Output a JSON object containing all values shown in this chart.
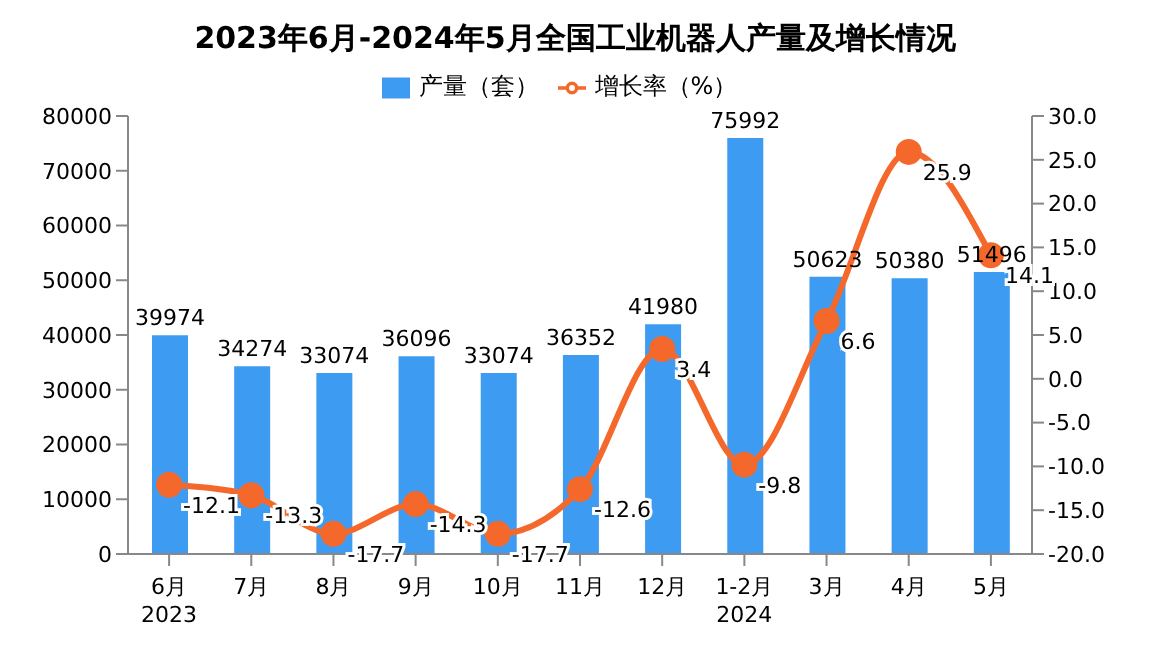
{
  "chart_data": {
    "type": "bar",
    "title": "2023年6月-2024年5月全国工业机器人产量及增长情况",
    "categories": [
      "6月\n2023",
      "7月",
      "8月",
      "9月",
      "10月",
      "11月",
      "12月",
      "1-2月\n2024",
      "3月",
      "4月",
      "5月"
    ],
    "series": [
      {
        "name": "产量（套）",
        "color": "#3d9cf2",
        "values": [
          39974,
          34274,
          33074,
          36096,
          33074,
          36352,
          41980,
          75992,
          50623,
          50380,
          51496
        ]
      },
      {
        "name": "增长率（%）",
        "type": "line",
        "axis": "y2",
        "color": "#f4692b",
        "marker": "circle",
        "values": [
          -12.1,
          -13.3,
          -17.7,
          -14.3,
          -17.7,
          -12.6,
          3.4,
          -9.8,
          6.6,
          25.9,
          14.1
        ]
      }
    ],
    "ylim": [
      0,
      80000
    ],
    "yticks": [
      0,
      10000,
      20000,
      30000,
      40000,
      50000,
      60000,
      70000,
      80000
    ],
    "y2lim": [
      -20,
      30
    ],
    "y2ticks": [
      {
        "value": -20,
        "label": "-20.0"
      },
      {
        "value": -15,
        "label": "-15.0"
      },
      {
        "value": -10,
        "label": "-10.0"
      },
      {
        "value": -5,
        "label": "-5.0"
      },
      {
        "value": 0,
        "label": "0.0"
      },
      {
        "value": 5,
        "label": "5.0"
      },
      {
        "value": 10,
        "label": "10.0"
      },
      {
        "value": 15,
        "label": "15.0"
      },
      {
        "value": 20,
        "label": "20.0"
      },
      {
        "value": 25,
        "label": "25.0"
      },
      {
        "value": 30,
        "label": "30.0"
      }
    ],
    "data_labels": true,
    "legend": "top",
    "grid": false
  }
}
